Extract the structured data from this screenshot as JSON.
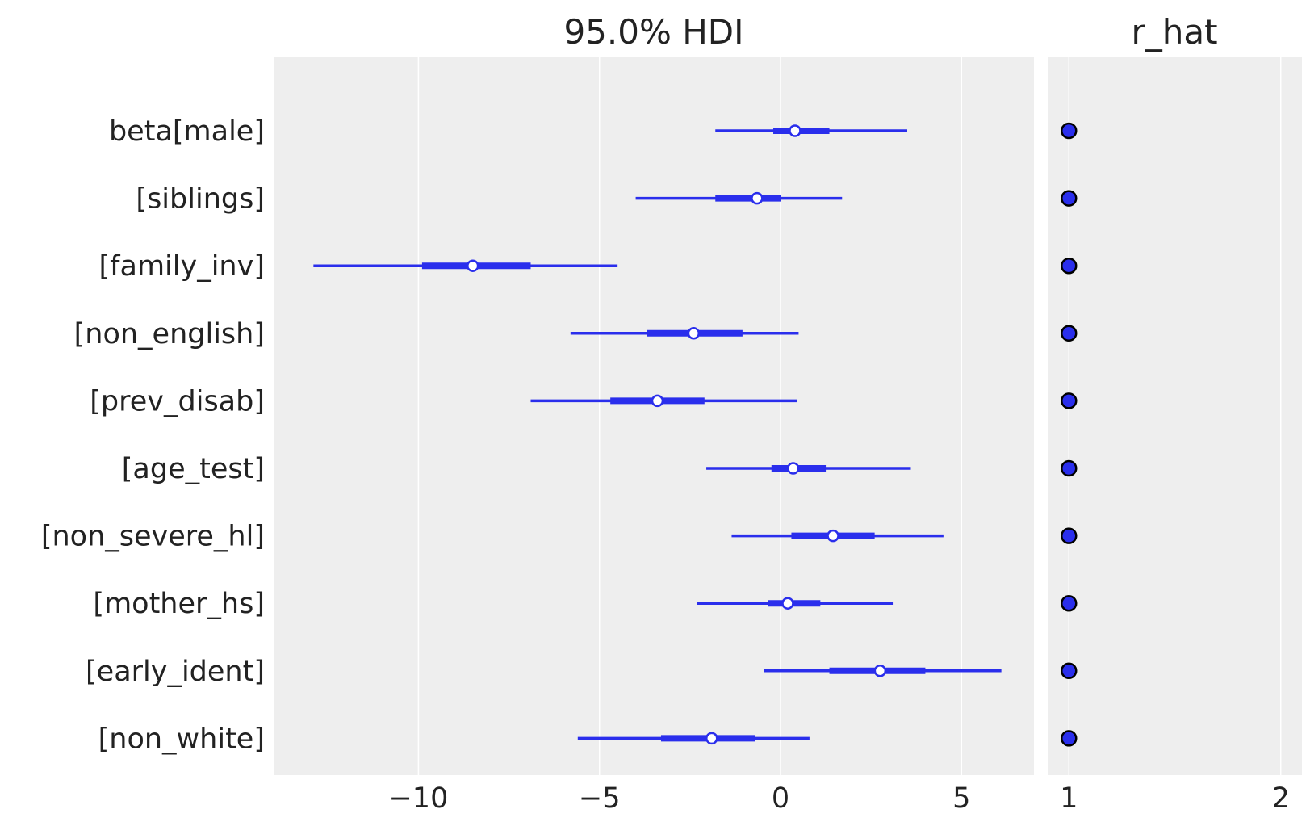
{
  "chart_data": {
    "type": "forest",
    "colors": {
      "line": "#2a2eec",
      "point_fill": "#ffffff",
      "rhat_fill": "#2a2eec",
      "rhat_edge": "#000000",
      "panel": "#eeeeee"
    },
    "panels": [
      {
        "title": "95.0% HDI",
        "xlim": [
          -14,
          7
        ],
        "xticks": [
          -10,
          -5,
          0,
          5
        ],
        "xtick_labels": [
          "−10",
          "−5",
          "0",
          "5"
        ],
        "grid": true
      },
      {
        "title": "r_hat",
        "xlim": [
          0.9,
          2.1
        ],
        "xticks": [
          1,
          2
        ],
        "xtick_labels": [
          "1",
          "2"
        ],
        "grid": true
      }
    ],
    "parameters": [
      "beta[male]",
      "[siblings]",
      "[family_inv]",
      "[non_english]",
      "[prev_disab]",
      "[age_test]",
      "[non_severe_hl]",
      "[mother_hs]",
      "[early_ident]",
      "[non_white]"
    ],
    "hdi_95": [
      [
        -1.8,
        3.5
      ],
      [
        -4.0,
        1.7
      ],
      [
        -12.9,
        -4.5
      ],
      [
        -5.8,
        0.5
      ],
      [
        -6.9,
        0.45
      ],
      [
        -2.05,
        3.6
      ],
      [
        -1.35,
        4.5
      ],
      [
        -2.3,
        3.1
      ],
      [
        -0.45,
        6.1
      ],
      [
        -5.6,
        0.8
      ]
    ],
    "iqr_50": [
      [
        -0.2,
        1.35
      ],
      [
        -1.8,
        0.0
      ],
      [
        -9.9,
        -6.9
      ],
      [
        -3.7,
        -1.05
      ],
      [
        -4.7,
        -2.1
      ],
      [
        -0.25,
        1.25
      ],
      [
        0.3,
        2.6
      ],
      [
        -0.35,
        1.1
      ],
      [
        1.35,
        4.0
      ],
      [
        -3.3,
        -0.7
      ]
    ],
    "median": [
      0.4,
      -0.65,
      -8.5,
      -2.4,
      -3.4,
      0.35,
      1.45,
      0.2,
      2.75,
      -1.9
    ],
    "r_hat": [
      1.0,
      1.0,
      1.0,
      1.0,
      1.0,
      1.0,
      1.0,
      1.0,
      1.0,
      1.0
    ]
  }
}
